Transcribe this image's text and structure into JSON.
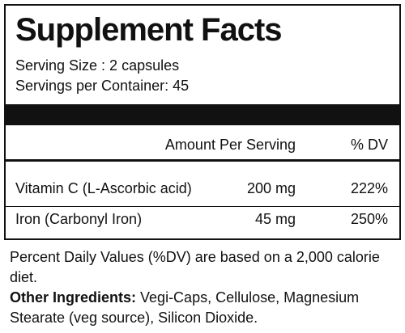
{
  "panel": {
    "title": "Supplement Facts",
    "serving_size": "Serving Size : 2 capsules",
    "servings_per_container": "Servings per Container: 45",
    "header": {
      "amount": "Amount Per Serving",
      "dv": "% DV"
    },
    "rows": [
      [
        "Vitamin C (L-Ascorbic acid)",
        "200 mg",
        "222%"
      ],
      [
        "Iron (Carbonyl Iron)",
        "45 mg",
        "250%"
      ]
    ]
  },
  "footnote": "Percent Daily Values (%DV) are based on a 2,000 calorie diet.",
  "other_ingredients": {
    "label": "Other Ingredients:",
    "text": "Vegi-Caps, Cellulose, Magnesium Stearate (veg source), Silicon Dioxide."
  }
}
